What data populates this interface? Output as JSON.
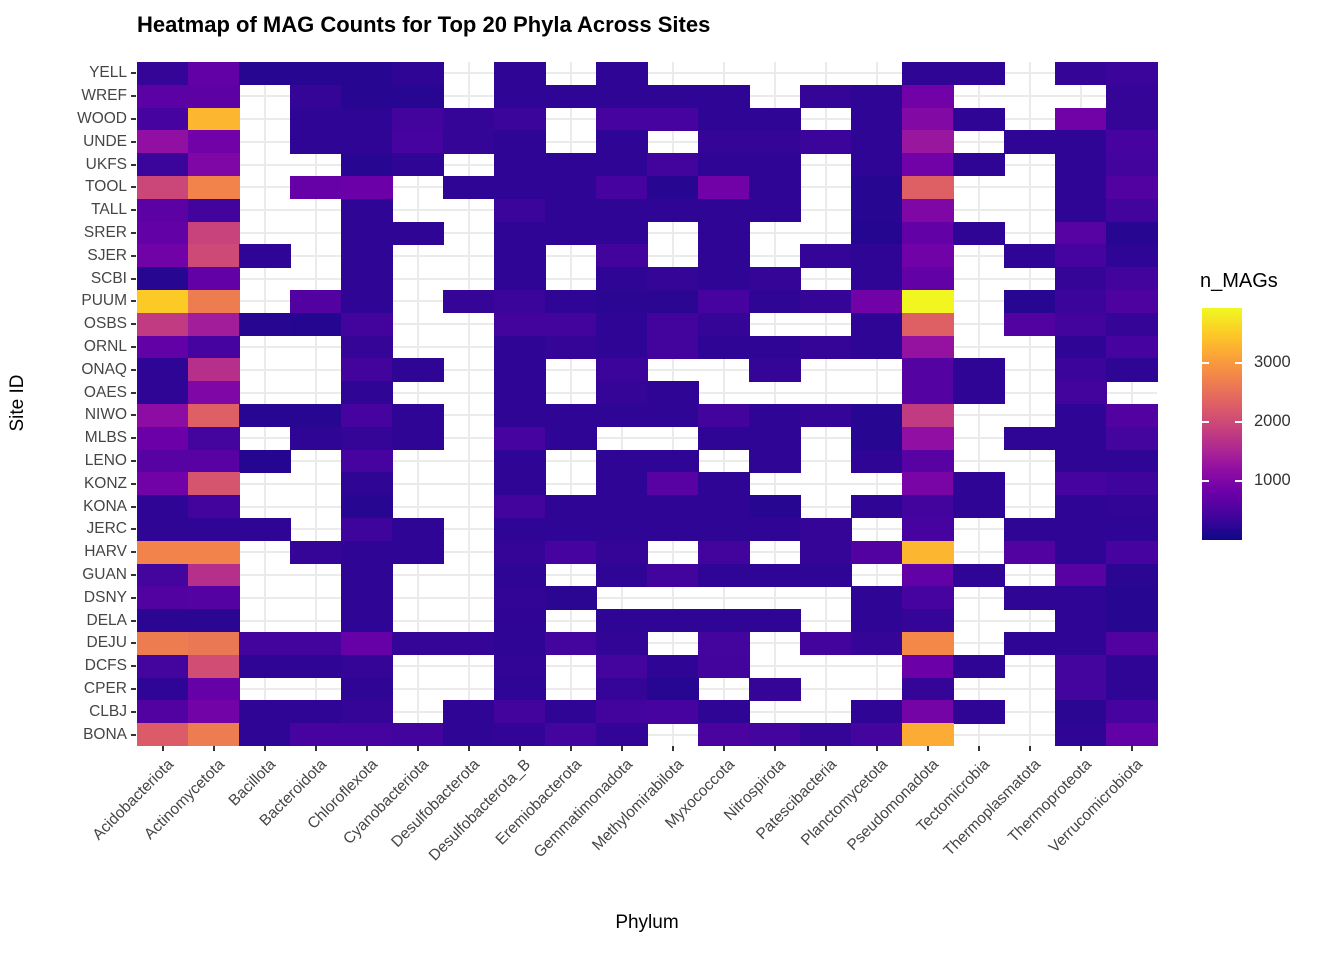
{
  "page": {
    "title": "Heatmap of MAG Counts for Top 20 Phyla Across Sites"
  },
  "axes": {
    "x_label": "Phylum",
    "y_label": "Site ID"
  },
  "legend": {
    "title": "n_MAGs",
    "ticks": [
      1000,
      2000,
      3000
    ]
  },
  "chart_data": {
    "type": "heatmap",
    "title": "Heatmap of MAG Counts for Top 20 Phyla Across Sites",
    "xlabel": "Phylum",
    "ylabel": "Site ID",
    "legend_title": "n_MAGs",
    "legend_position": "right",
    "grid": true,
    "scale_min": 0,
    "scale_max": 3930,
    "palette": "plasma",
    "color_stops": [
      [
        0.0,
        "#0d0887"
      ],
      [
        0.1,
        "#41049d"
      ],
      [
        0.2,
        "#6a00a8"
      ],
      [
        0.3,
        "#8f0da4"
      ],
      [
        0.4,
        "#b12a90"
      ],
      [
        0.5,
        "#cc4778"
      ],
      [
        0.6,
        "#e16462"
      ],
      [
        0.7,
        "#f2844b"
      ],
      [
        0.8,
        "#fca636"
      ],
      [
        0.9,
        "#fcce25"
      ],
      [
        1.0,
        "#f0f921"
      ]
    ],
    "na_color": "#ffffff",
    "x_categories": [
      "Acidobacteriota",
      "Actinomycetota",
      "Bacillota",
      "Bacteroidota",
      "Chloroflexota",
      "Cyanobacteriota",
      "Desulfobacterota",
      "Desulfobacterota_B",
      "Eremiobacterota",
      "Gemmatimonadota",
      "Methylomirabilota",
      "Myxococcota",
      "Nitrospirota",
      "Patescibacteria",
      "Planctomycetota",
      "Pseudomonadota",
      "Tectomicrobia",
      "Thermoplasmatota",
      "Thermoproteota",
      "Verrucomicrobiota"
    ],
    "y_categories": [
      "YELL",
      "WREF",
      "WOOD",
      "UNDE",
      "UKFS",
      "TOOL",
      "TALL",
      "SRER",
      "SJER",
      "SCBI",
      "PUUM",
      "OSBS",
      "ORNL",
      "ONAQ",
      "OAES",
      "NIWO",
      "MLBS",
      "LENO",
      "KONZ",
      "KONA",
      "JERC",
      "HARV",
      "GUAN",
      "DSNY",
      "DELA",
      "DEJU",
      "DCFS",
      "CPER",
      "CLBJ",
      "BONA"
    ],
    "values": [
      [
        300,
        700,
        200,
        200,
        200,
        250,
        null,
        250,
        null,
        250,
        null,
        null,
        null,
        null,
        null,
        250,
        250,
        null,
        300,
        350
      ],
      [
        650,
        650,
        null,
        300,
        200,
        200,
        null,
        250,
        250,
        250,
        250,
        250,
        null,
        300,
        250,
        850,
        null,
        null,
        null,
        300
      ],
      [
        450,
        3300,
        null,
        250,
        250,
        400,
        300,
        350,
        null,
        450,
        450,
        250,
        250,
        null,
        250,
        1050,
        250,
        null,
        850,
        300
      ],
      [
        1200,
        850,
        null,
        250,
        250,
        450,
        300,
        250,
        null,
        250,
        null,
        300,
        300,
        350,
        250,
        1300,
        null,
        250,
        250,
        450
      ],
      [
        350,
        1000,
        null,
        null,
        200,
        250,
        null,
        250,
        250,
        250,
        400,
        250,
        250,
        null,
        250,
        850,
        250,
        null,
        250,
        400
      ],
      [
        1950,
        2750,
        null,
        750,
        800,
        null,
        250,
        250,
        250,
        450,
        200,
        850,
        250,
        null,
        200,
        2300,
        null,
        null,
        250,
        550
      ],
      [
        650,
        400,
        null,
        null,
        250,
        null,
        null,
        350,
        250,
        250,
        250,
        250,
        250,
        null,
        200,
        1000,
        null,
        null,
        250,
        400
      ],
      [
        700,
        1900,
        null,
        null,
        250,
        250,
        null,
        250,
        250,
        250,
        null,
        250,
        null,
        null,
        180,
        700,
        250,
        null,
        600,
        200
      ],
      [
        850,
        2000,
        250,
        null,
        250,
        null,
        null,
        250,
        null,
        400,
        null,
        250,
        null,
        300,
        250,
        850,
        null,
        250,
        450,
        250
      ],
      [
        200,
        700,
        null,
        null,
        250,
        null,
        null,
        250,
        null,
        250,
        300,
        250,
        300,
        null,
        250,
        700,
        null,
        null,
        300,
        400
      ],
      [
        3500,
        2650,
        null,
        550,
        250,
        null,
        300,
        350,
        250,
        220,
        220,
        450,
        250,
        300,
        850,
        3900,
        null,
        200,
        350,
        520
      ],
      [
        1800,
        1400,
        200,
        180,
        400,
        null,
        null,
        400,
        400,
        250,
        400,
        300,
        null,
        null,
        250,
        2300,
        null,
        550,
        400,
        300
      ],
      [
        700,
        450,
        null,
        null,
        300,
        null,
        null,
        250,
        300,
        250,
        400,
        250,
        250,
        300,
        250,
        1250,
        null,
        null,
        250,
        450
      ],
      [
        250,
        1650,
        null,
        null,
        400,
        250,
        null,
        250,
        null,
        350,
        null,
        null,
        300,
        null,
        null,
        580,
        250,
        null,
        350,
        250
      ],
      [
        250,
        1000,
        null,
        null,
        250,
        null,
        null,
        250,
        null,
        300,
        250,
        null,
        null,
        null,
        null,
        580,
        250,
        null,
        400,
        null
      ],
      [
        1150,
        2300,
        200,
        200,
        450,
        250,
        null,
        250,
        250,
        250,
        250,
        400,
        250,
        300,
        200,
        1800,
        null,
        null,
        250,
        550
      ],
      [
        800,
        420,
        null,
        250,
        300,
        250,
        null,
        450,
        250,
        null,
        null,
        250,
        250,
        null,
        200,
        1200,
        null,
        250,
        250,
        420
      ],
      [
        600,
        620,
        180,
        null,
        450,
        null,
        null,
        250,
        null,
        250,
        250,
        null,
        250,
        null,
        250,
        620,
        null,
        null,
        250,
        250
      ],
      [
        850,
        2150,
        null,
        null,
        250,
        null,
        null,
        250,
        null,
        250,
        620,
        250,
        null,
        null,
        null,
        950,
        250,
        null,
        450,
        380
      ],
      [
        250,
        400,
        null,
        null,
        200,
        null,
        null,
        400,
        250,
        250,
        250,
        250,
        200,
        null,
        250,
        400,
        250,
        null,
        250,
        280
      ],
      [
        250,
        250,
        250,
        null,
        380,
        250,
        null,
        250,
        250,
        250,
        250,
        250,
        250,
        300,
        null,
        450,
        null,
        250,
        250,
        250
      ],
      [
        2750,
        2750,
        null,
        300,
        250,
        250,
        null,
        300,
        450,
        300,
        null,
        400,
        null,
        300,
        550,
        3300,
        null,
        550,
        250,
        450
      ],
      [
        420,
        1650,
        null,
        null,
        250,
        null,
        null,
        250,
        null,
        250,
        400,
        250,
        250,
        250,
        null,
        700,
        250,
        null,
        620,
        220
      ],
      [
        550,
        580,
        null,
        null,
        250,
        null,
        null,
        280,
        220,
        null,
        null,
        null,
        null,
        null,
        250,
        450,
        null,
        250,
        250,
        200
      ],
      [
        220,
        220,
        null,
        null,
        250,
        null,
        null,
        250,
        null,
        250,
        250,
        250,
        250,
        null,
        250,
        300,
        null,
        null,
        250,
        200
      ],
      [
        2650,
        2600,
        400,
        400,
        750,
        300,
        300,
        250,
        420,
        280,
        null,
        420,
        null,
        400,
        300,
        2800,
        null,
        250,
        250,
        550
      ],
      [
        420,
        2050,
        250,
        250,
        300,
        null,
        null,
        280,
        null,
        420,
        250,
        400,
        null,
        null,
        null,
        800,
        250,
        null,
        420,
        250
      ],
      [
        250,
        750,
        null,
        null,
        250,
        null,
        null,
        250,
        null,
        300,
        200,
        null,
        300,
        null,
        null,
        300,
        null,
        null,
        420,
        250
      ],
      [
        550,
        870,
        250,
        250,
        300,
        null,
        250,
        400,
        250,
        400,
        450,
        250,
        null,
        null,
        250,
        900,
        250,
        null,
        220,
        450
      ],
      [
        2250,
        2650,
        250,
        450,
        450,
        400,
        250,
        280,
        420,
        280,
        null,
        480,
        420,
        300,
        420,
        3200,
        null,
        null,
        250,
        700
      ]
    ]
  }
}
